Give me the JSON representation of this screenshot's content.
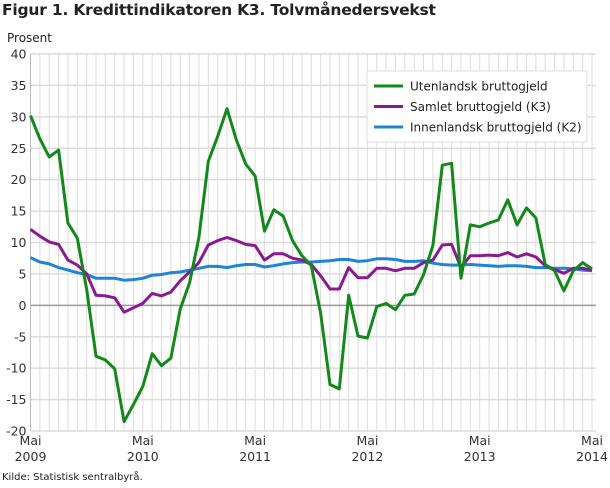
{
  "chart_data": {
    "type": "line",
    "title": "Figur 1. Kredittindikatoren K3. Tolvmånedersvekst",
    "ylabel": "Prosent",
    "xlabel": "",
    "ylim": [
      -20,
      40
    ],
    "yticks": [
      "40",
      "35",
      "30",
      "25",
      "20",
      "15",
      "10",
      "5",
      "0",
      "-5",
      "-10",
      "-15",
      "-20"
    ],
    "ytick_values": [
      40,
      35,
      30,
      25,
      20,
      15,
      10,
      5,
      0,
      -5,
      -10,
      -15,
      -20
    ],
    "xticks": [
      {
        "month": "Mai",
        "year": "2009",
        "index": 0
      },
      {
        "month": "Mai",
        "year": "2010",
        "index": 12
      },
      {
        "month": "Mai",
        "year": "2011",
        "index": 24
      },
      {
        "month": "Mai",
        "year": "2012",
        "index": 36
      },
      {
        "month": "Mai",
        "year": "2013",
        "index": 48
      },
      {
        "month": "Mai",
        "year": "2014",
        "index": 60
      }
    ],
    "x_description": "monthly, May 2009 to May 2014",
    "grid": true,
    "legend_placement": "top-right",
    "series": [
      {
        "name": "Utenlandsk bruttogjeld",
        "color": "#13881b",
        "values": [
          30.2,
          26.5,
          23.6,
          24.7,
          13.1,
          10.7,
          2.5,
          -8.1,
          -8.7,
          -10.1,
          -18.5,
          -15.8,
          -12.9,
          -7.7,
          -9.6,
          -8.4,
          -0.6,
          3.6,
          10.8,
          22.9,
          26.9,
          31.3,
          26.3,
          22.5,
          20.6,
          11.8,
          15.2,
          14.2,
          10.3,
          7.9,
          6.3,
          -1.2,
          -12.6,
          -13.3,
          1.6,
          -4.9,
          -5.2,
          -0.2,
          0.3,
          -0.7,
          1.6,
          1.8,
          4.9,
          9.5,
          22.3,
          22.6,
          4.3,
          12.8,
          12.5,
          13.1,
          13.6,
          16.8,
          12.8,
          15.5,
          13.9,
          6.5,
          5.5,
          2.3,
          5.5,
          6.8,
          5.8
        ]
      },
      {
        "name": "Samlet bruttogjeld (K3)",
        "color": "#8a1a92",
        "values": [
          12.1,
          11.0,
          10.1,
          9.7,
          7.2,
          6.4,
          5.0,
          1.6,
          1.5,
          1.2,
          -1.1,
          -0.4,
          0.3,
          1.9,
          1.5,
          2.1,
          3.9,
          5.3,
          6.8,
          9.6,
          10.3,
          10.8,
          10.3,
          9.7,
          9.5,
          7.2,
          8.2,
          8.2,
          7.5,
          7.2,
          6.5,
          4.7,
          2.6,
          2.6,
          6.0,
          4.4,
          4.4,
          5.9,
          5.9,
          5.5,
          5.9,
          5.9,
          6.8,
          7.2,
          9.6,
          9.7,
          6.0,
          7.9,
          7.9,
          8.0,
          7.9,
          8.4,
          7.7,
          8.2,
          7.7,
          6.3,
          5.7,
          5.1,
          5.9,
          5.9,
          5.6
        ]
      },
      {
        "name": "Innenlandsk bruttogjeld (K2)",
        "color": "#1d84d8",
        "values": [
          7.6,
          6.9,
          6.6,
          6.0,
          5.6,
          5.2,
          4.9,
          4.3,
          4.3,
          4.3,
          4.0,
          4.1,
          4.3,
          4.8,
          4.9,
          5.2,
          5.3,
          5.6,
          5.9,
          6.2,
          6.2,
          6.0,
          6.3,
          6.5,
          6.5,
          6.1,
          6.3,
          6.6,
          6.8,
          6.9,
          6.9,
          7.0,
          7.1,
          7.3,
          7.3,
          7.0,
          7.1,
          7.4,
          7.4,
          7.3,
          7.0,
          7.0,
          7.1,
          6.7,
          6.5,
          6.4,
          6.4,
          6.5,
          6.4,
          6.3,
          6.2,
          6.3,
          6.3,
          6.2,
          6.0,
          6.0,
          5.9,
          5.9,
          5.8,
          5.6,
          5.5
        ]
      }
    ]
  },
  "source": "Kilde: Statistisk sentralbyrå."
}
